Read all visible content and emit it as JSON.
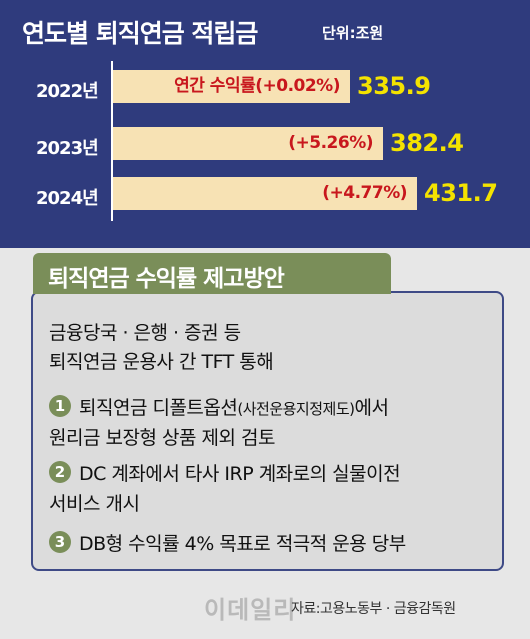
{
  "chart_data": {
    "type": "bar",
    "orientation": "horizontal",
    "title": "연도별 퇴직연금 적립금",
    "unit": "단위:조원",
    "categories": [
      "2022년",
      "2023년",
      "2024년"
    ],
    "values": [
      335.9,
      382.4,
      431.7
    ],
    "value_labels": [
      "335.9",
      "382.4",
      "431.7"
    ],
    "annotations": [
      "연간 수익률(+0.02%)",
      "(+5.26%)",
      "(+4.77%)"
    ],
    "colors": {
      "background": "#2f3b7d",
      "bar": "#f7e2b4",
      "annotation": "#c8171d",
      "value": "#f4e300"
    }
  },
  "plan": {
    "banner": "퇴직연금 수익률 제고방안",
    "intro_line1": "금융당국 · 은행 · 증권 등",
    "intro_line2": "퇴직연금 운용사 간 TFT 통해",
    "items": [
      {
        "num": "1",
        "line1_main": "퇴직연금 디폴트옵션",
        "line1_paren": "(사전운용지정제도)",
        "line1_tail": "에서",
        "line2": "원리금 보장형 상품 제외 검토"
      },
      {
        "num": "2",
        "line1": "DC 계좌에서 타사 IRP 계좌로의 실물이전",
        "line2": "서비스 개시"
      },
      {
        "num": "3",
        "line1": "DB형 수익률 4% 목표로 적극적 운용 당부"
      }
    ]
  },
  "footer": {
    "watermark": "이데일리",
    "source": "자료:고용노동부 · 금융감독원"
  }
}
